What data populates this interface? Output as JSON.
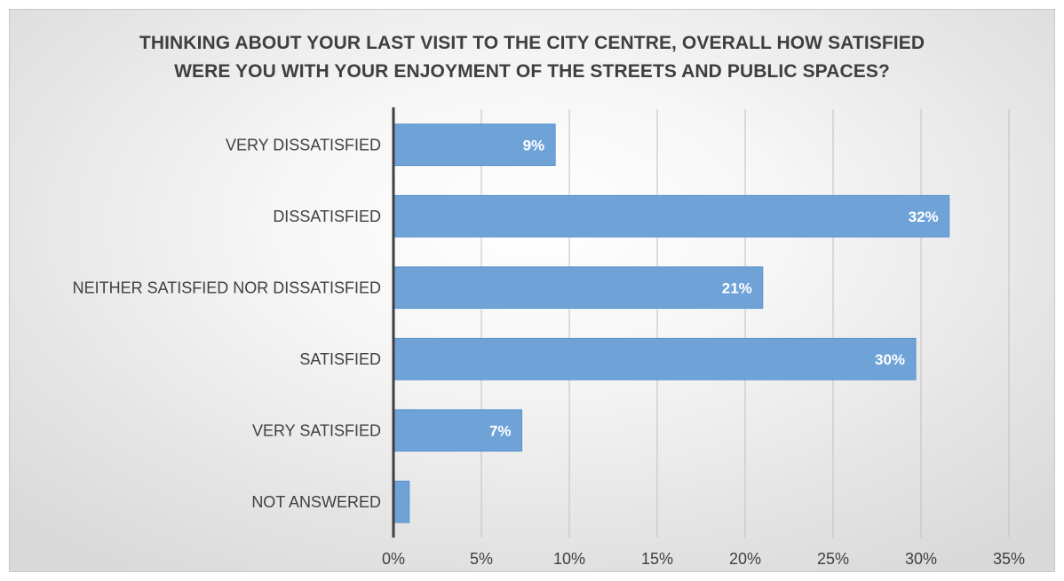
{
  "chart_data": {
    "type": "bar",
    "orientation": "horizontal",
    "title_lines": [
      "THINKING ABOUT YOUR LAST VISIT TO THE CITY CENTRE, OVERALL HOW SATISFIED",
      "WERE YOU WITH YOUR ENJOYMENT OF THE STREETS AND PUBLIC SPACES?"
    ],
    "categories": [
      "VERY DISSATISFIED",
      "DISSATISFIED",
      "NEITHER SATISFIED NOR DISSATISFIED",
      "SATISFIED",
      "VERY SATISFIED",
      "NOT ANSWERED"
    ],
    "values": [
      9.2,
      31.6,
      21.0,
      29.7,
      7.3,
      0.9
    ],
    "data_labels": [
      "9%",
      "32%",
      "21%",
      "30%",
      "7%",
      ""
    ],
    "xlim": [
      0,
      35
    ],
    "x_ticks": [
      0,
      5,
      10,
      15,
      20,
      25,
      30,
      35
    ],
    "x_tick_labels": [
      "0%",
      "5%",
      "10%",
      "15%",
      "20%",
      "25%",
      "30%",
      "35%"
    ],
    "grid": "vertical",
    "legend": "none",
    "bar_color": "#6fa3d8",
    "bar_edge_color": "#5b93cc",
    "axis_color": "#404040",
    "grid_color": "#c0c0c0"
  }
}
